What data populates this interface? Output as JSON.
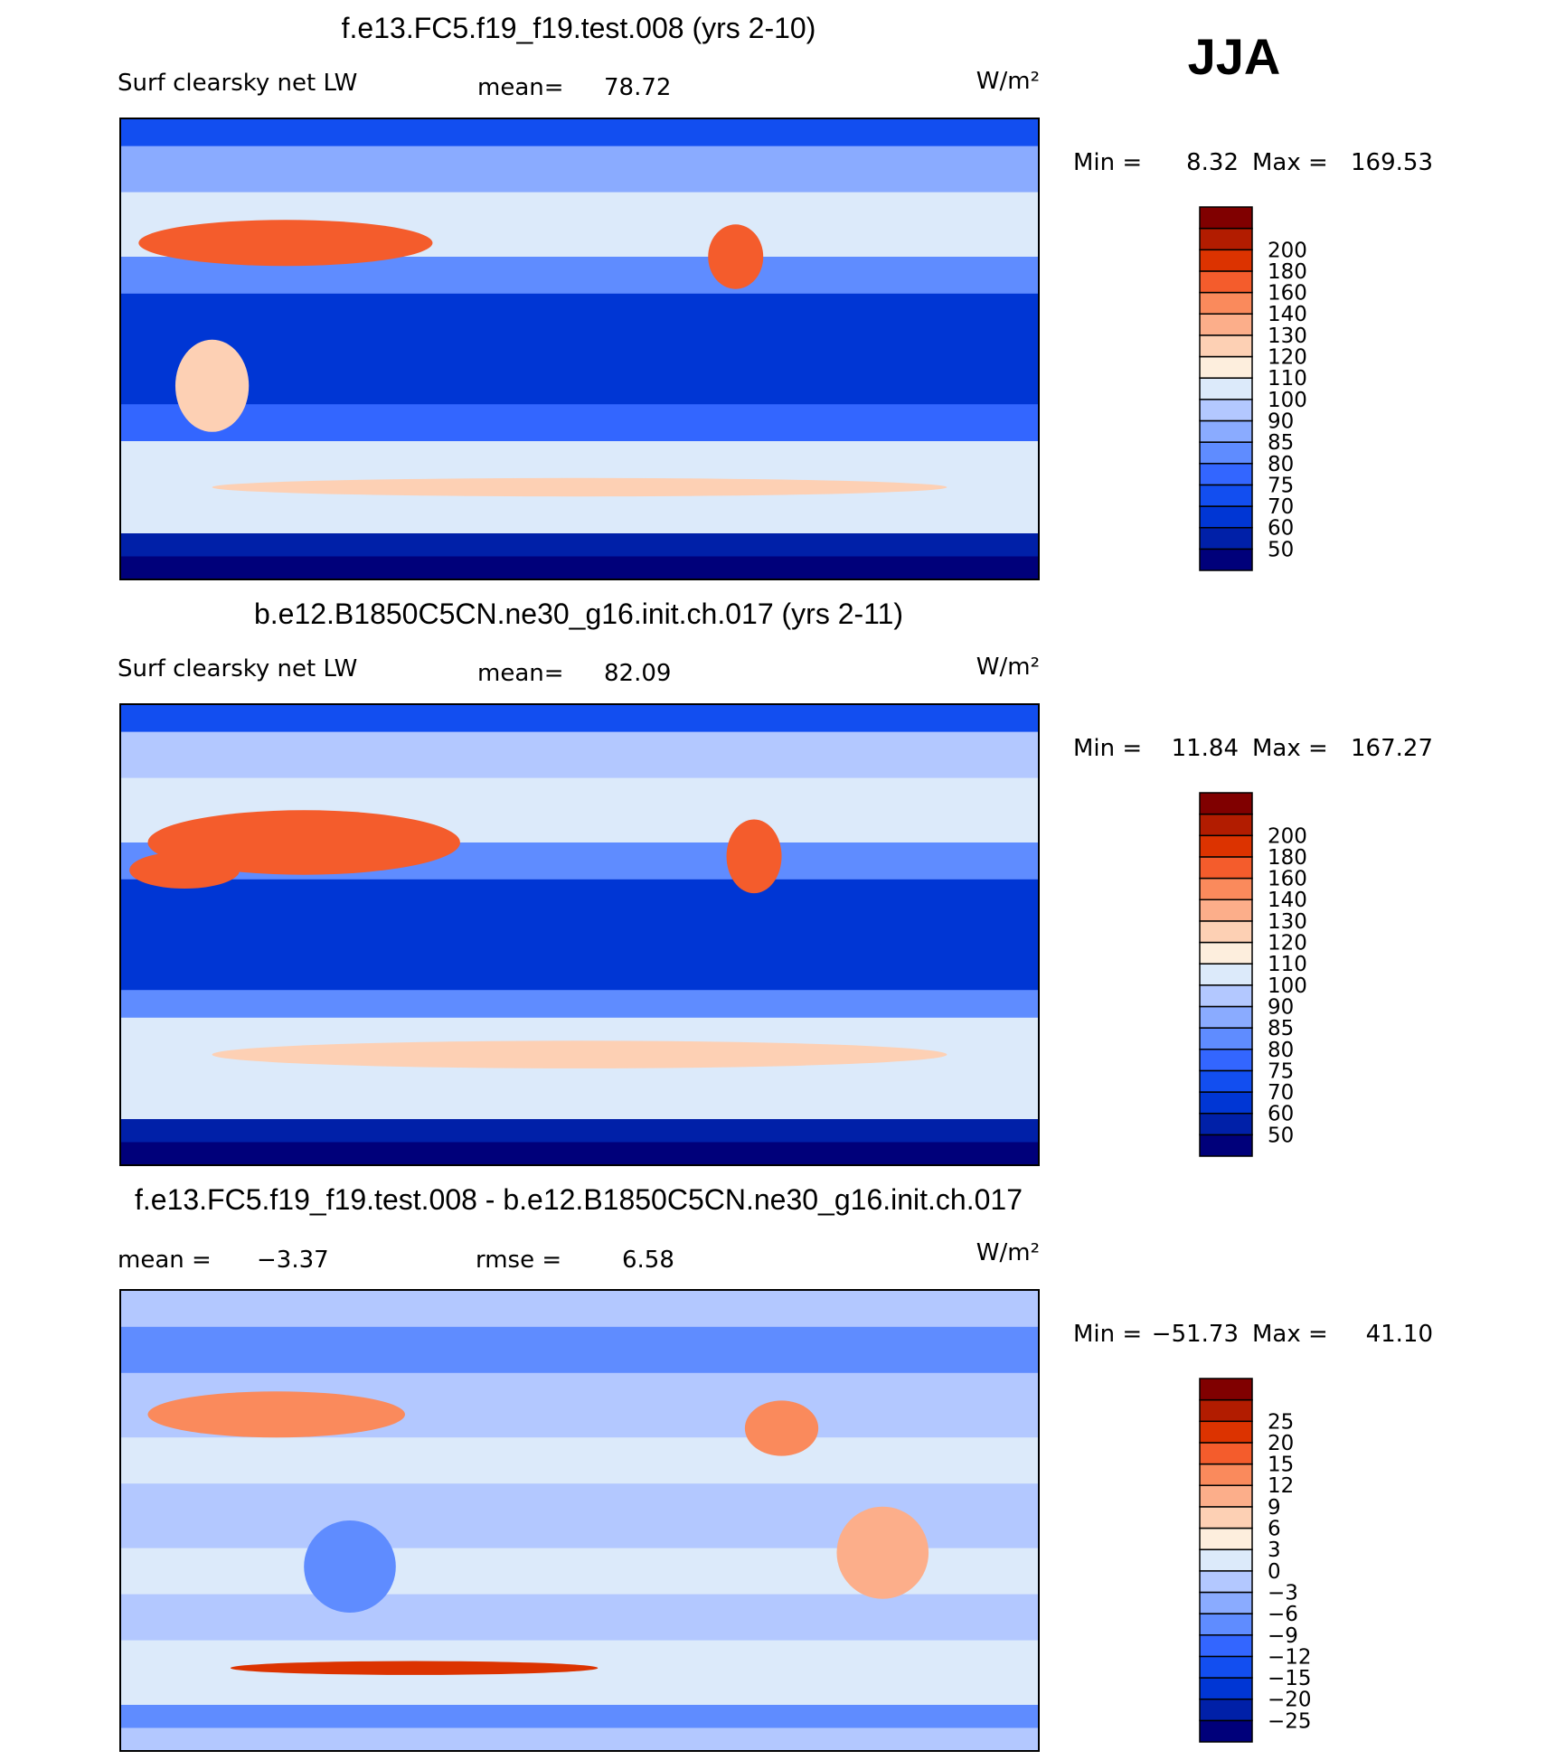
{
  "header": {
    "season": "JJA"
  },
  "panels": [
    {
      "title": "f.e13.FC5.f19_f19.test.008 (yrs 2-10)",
      "label": "Surf clearsky net LW",
      "mean_label": "mean=",
      "mean": 78.72,
      "units": "W/m²",
      "min_label": "Min =",
      "min": 8.32,
      "max_label": "Max =",
      "max": 169.53,
      "levels": [
        50,
        60,
        70,
        75,
        80,
        85,
        90,
        100,
        110,
        120,
        130,
        140,
        160,
        180,
        200
      ],
      "colors": [
        "#00007a",
        "#0020a8",
        "#0036d4",
        "#124ef0",
        "#3366ff",
        "#5f8cff",
        "#8aabff",
        "#b3c8ff",
        "#dceafa",
        "#fdeedd",
        "#fdd0b4",
        "#fcae8a",
        "#fa8a5c",
        "#f45c2c",
        "#dc3300",
        "#b21c00",
        "#800000"
      ]
    },
    {
      "title": "b.e12.B1850C5CN.ne30_g16.init.ch.017 (yrs 2-11)",
      "label": "Surf clearsky net LW",
      "mean_label": "mean=",
      "mean": 82.09,
      "units": "W/m²",
      "min_label": "Min =",
      "min": 11.84,
      "max_label": "Max =",
      "max": 167.27,
      "levels": [
        50,
        60,
        70,
        75,
        80,
        85,
        90,
        100,
        110,
        120,
        130,
        140,
        160,
        180,
        200
      ],
      "colors": [
        "#00007a",
        "#0020a8",
        "#0036d4",
        "#124ef0",
        "#3366ff",
        "#5f8cff",
        "#8aabff",
        "#b3c8ff",
        "#dceafa",
        "#fdeedd",
        "#fdd0b4",
        "#fcae8a",
        "#fa8a5c",
        "#f45c2c",
        "#dc3300",
        "#b21c00",
        "#800000"
      ]
    },
    {
      "title": "f.e13.FC5.f19_f19.test.008 - b.e12.B1850C5CN.ne30_g16.init.ch.017",
      "mean_label": "mean =",
      "mean": {
        "value": -3.37,
        "label": "−3.37"
      },
      "rmse_label": "rmse =",
      "rmse": 6.58,
      "units": "W/m²",
      "min_label": "Min =",
      "min": {
        "value": -51.73,
        "label": "−51.73"
      },
      "max_label": "Max =",
      "max": {
        "value": 41.1,
        "label": "41.10"
      },
      "levels": [
        {
          "value": -25,
          "label": "−25"
        },
        {
          "value": -20,
          "label": "−20"
        },
        {
          "value": -15,
          "label": "−15"
        },
        {
          "value": -12,
          "label": "−12"
        },
        {
          "value": -9,
          "label": "−9"
        },
        {
          "value": -6,
          "label": "−6"
        },
        {
          "value": -3,
          "label": "−3"
        },
        0,
        3,
        6,
        9,
        12,
        15,
        20,
        25
      ],
      "colors": [
        "#00007a",
        "#0020a8",
        "#0036d4",
        "#124ef0",
        "#3366ff",
        "#5f8cff",
        "#8aabff",
        "#b3c8ff",
        "#dceafa",
        "#fdeedd",
        "#fdd0b4",
        "#fcae8a",
        "#fa8a5c",
        "#f45c2c",
        "#dc3300",
        "#b21c00",
        "#800000"
      ]
    }
  ]
}
